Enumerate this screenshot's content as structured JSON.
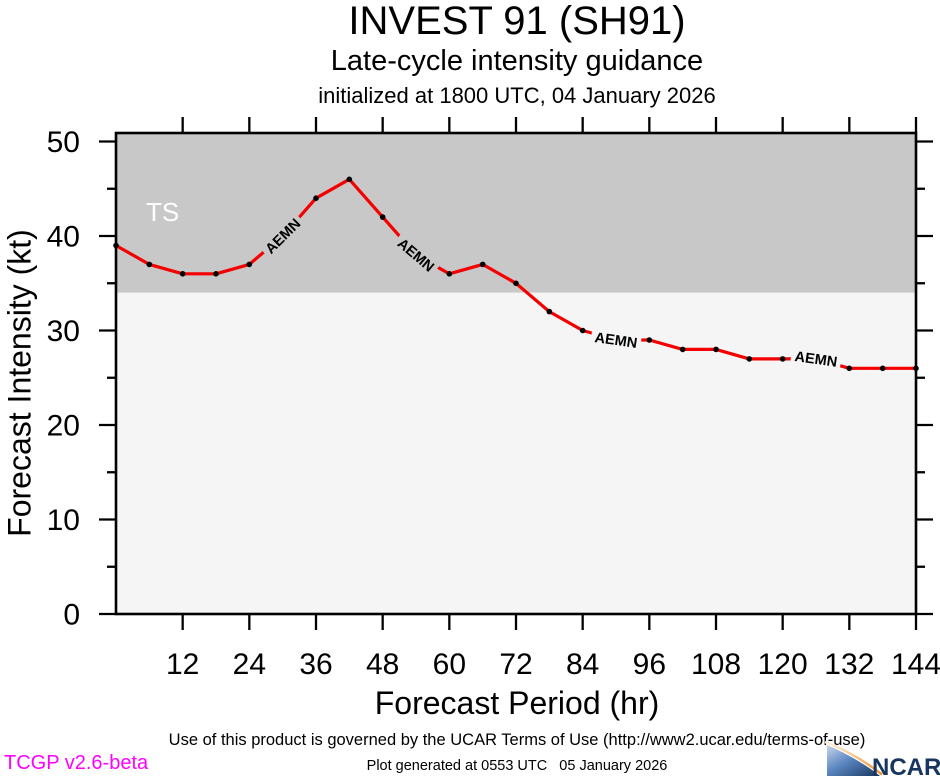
{
  "page": {
    "title": "INVEST 91 (SH91)",
    "subtitle": "Late-cycle intensity guidance",
    "init_line": "initialized at 1800 UTC, 04 January 2026"
  },
  "footer": {
    "terms": "Use of this product is governed by the UCAR Terms of Use (http://www2.ucar.edu/terms-of-use)",
    "generated": "Plot generated at 0553 UTC   05 January 2026",
    "version": "TCGP v2.6-beta",
    "logo_text": "NCAR"
  },
  "colors": {
    "ts_region": "#c8c8c8",
    "sub_ts_region": "#f5f5f5",
    "series_red": "#f50000",
    "marker": "#000000",
    "axis": "#000000",
    "ts_label_white": "#ffffff",
    "version_magenta": "#ff00ff",
    "logo_navy": "#16355f",
    "logo_orange": "#ef8f2f"
  },
  "chart_data": {
    "type": "line",
    "title": "INVEST 91 (SH91)",
    "subtitle": "Late-cycle intensity guidance",
    "init_time": "initialized at 1800 UTC, 04 January 2026",
    "xlabel": "Forecast Period (hr)",
    "ylabel": "Forecast Intensity (kt)",
    "xlim": [
      0,
      144
    ],
    "ylim": [
      0,
      50.9
    ],
    "x_ticks_major": [
      12,
      24,
      36,
      48,
      60,
      72,
      84,
      96,
      108,
      120,
      132,
      144
    ],
    "y_ticks_major": [
      0,
      10,
      20,
      30,
      40,
      50
    ],
    "y_ticks_minor": [
      5,
      15,
      25,
      35,
      45
    ],
    "grid": false,
    "legend": "inline-line-labels",
    "threshold": {
      "label": "TS",
      "value_kt": 34
    },
    "series": [
      {
        "name": "AEMN",
        "color": "#f50000",
        "x": [
          0,
          6,
          12,
          18,
          24,
          30,
          36,
          42,
          48,
          54,
          60,
          66,
          72,
          78,
          84,
          90,
          96,
          102,
          108,
          114,
          120,
          126,
          132,
          138,
          144
        ],
        "values": [
          39,
          37,
          36,
          36,
          37,
          40,
          44,
          46,
          42,
          38,
          36,
          37,
          35,
          32,
          30,
          29,
          29,
          28,
          28,
          27,
          27,
          27,
          26,
          26,
          26
        ],
        "label_positions_hr": [
          30,
          54,
          90,
          126
        ]
      }
    ]
  }
}
